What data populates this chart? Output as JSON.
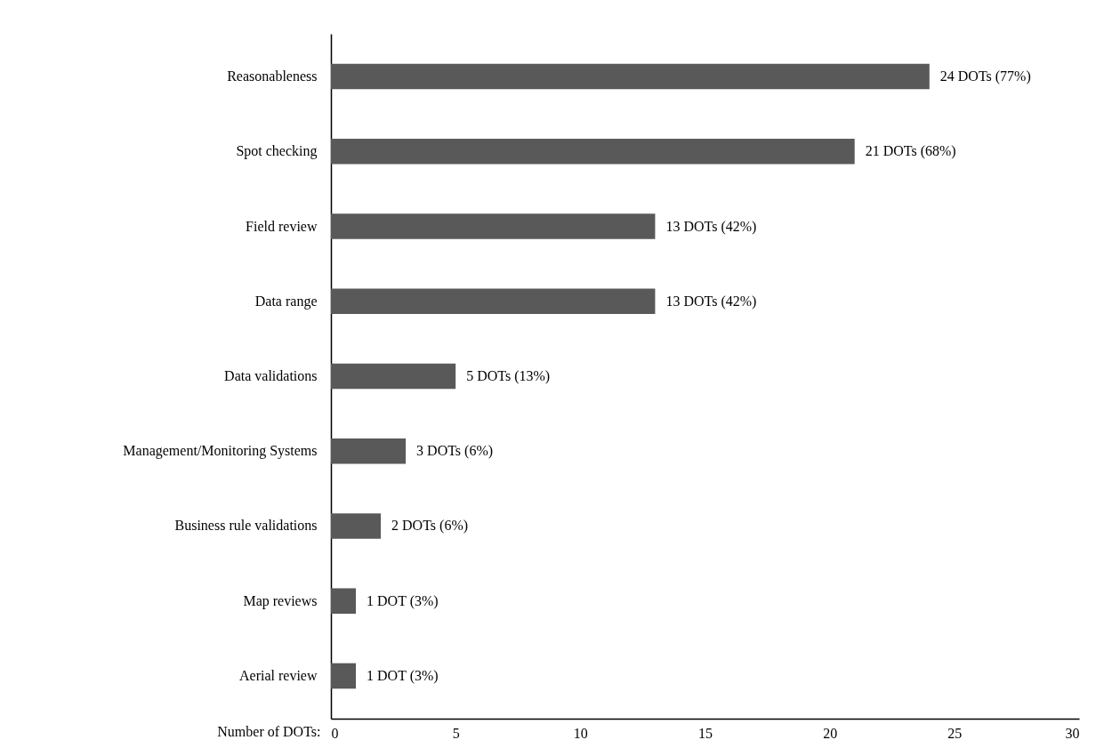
{
  "chart_data": {
    "type": "bar",
    "orientation": "horizontal",
    "categories": [
      "Reasonableness",
      "Spot checking",
      "Field review",
      "Data range",
      "Data validations",
      "Management/Monitoring Systems",
      "Business rule validations",
      "Map reviews",
      "Aerial review"
    ],
    "values": [
      24,
      21,
      13,
      13,
      5,
      3,
      2,
      1,
      1
    ],
    "value_labels": [
      "24 DOTs (77%)",
      "21 DOTs (68%)",
      "13 DOTs (42%)",
      "13 DOTs (42%)",
      "5 DOTs (13%)",
      "3 DOTs (6%)",
      "2 DOTs (6%)",
      "1 DOT (3%)",
      "1 DOT (3%)"
    ],
    "color": "#595959",
    "xlabel": "Number of DOTs:",
    "xlim": [
      0,
      30
    ],
    "xticks": [
      0,
      5,
      10,
      15,
      20,
      25,
      30
    ],
    "grid": false
  }
}
